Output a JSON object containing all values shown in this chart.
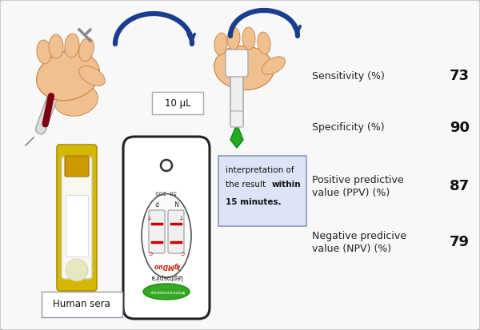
{
  "bg_color": "#f5f5f5",
  "metrics": [
    {
      "label": "Sensitivity (%)",
      "label2": "",
      "value": "73"
    },
    {
      "label": "Specificity (%)",
      "label2": "",
      "value": "90"
    },
    {
      "label": "Positive predictive",
      "label2": "value (PPV) (%)",
      "value": "87"
    },
    {
      "label": "Negative predicive",
      "label2": "value (NPV) (%)",
      "value": "79"
    }
  ],
  "arrow_color": "#1a3d8f",
  "box_label_10ul": "10 μL",
  "box_label_human_sera": "Human sera",
  "interpret_box_color": "#dde4f5",
  "interpret_box_edge": "#8899bb",
  "label_box_color": "#ffffff",
  "label_box_edge": "#aaaaaa",
  "metric_label_color": "#222222",
  "metric_value_color": "#111111",
  "tube_yellow": "#d4b800",
  "device_outline": "#222222",
  "device_fill": "#ffffff",
  "red_line": "#cc0000",
  "green_fill": "#33aa33",
  "hand_color": "#f0c090",
  "hand_edge": "#c88040"
}
